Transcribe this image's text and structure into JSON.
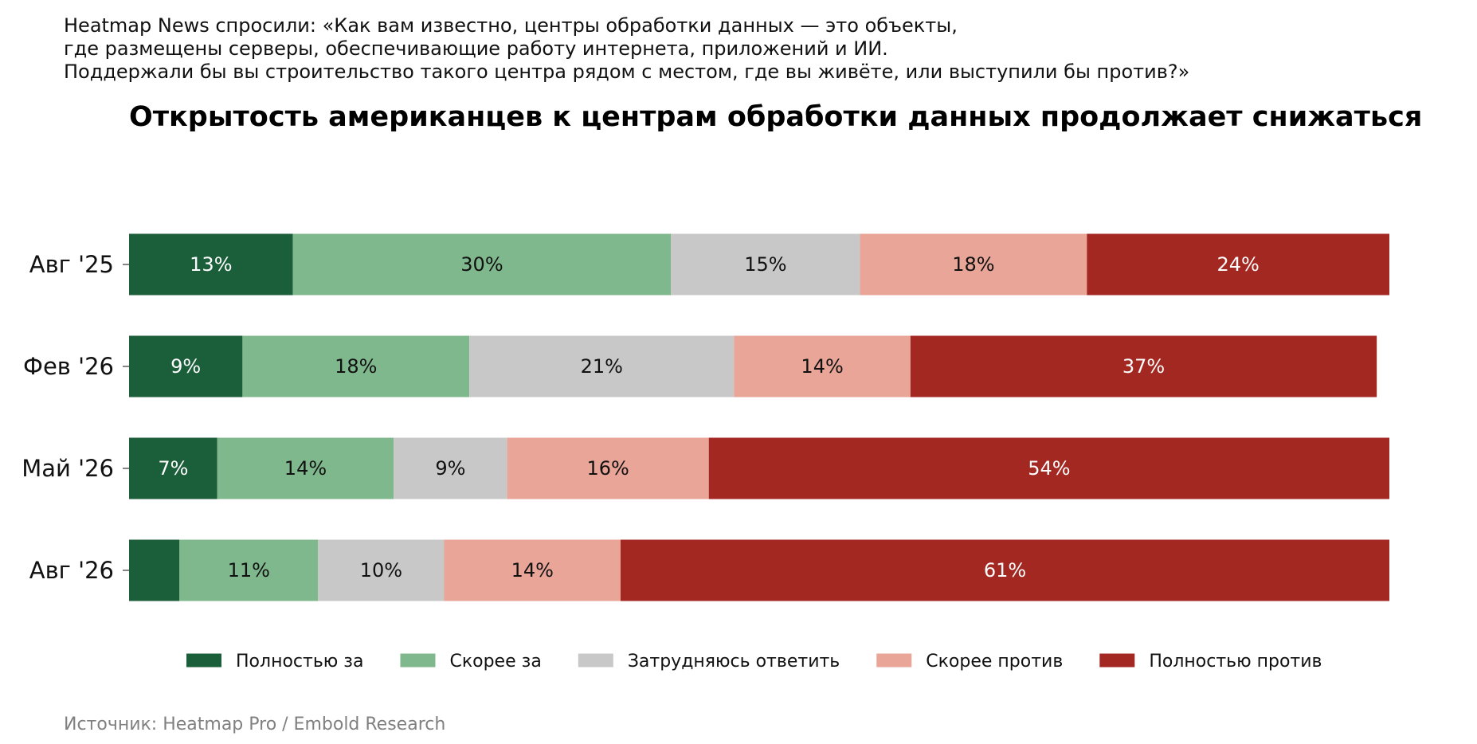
{
  "question": {
    "lines": [
      "Heatmap News спросили: «Как вам известно, центры обработки данных — это объекты,",
      "где размещены серверы, обеспечивающие работу интернета, приложений и ИИ.",
      "Поддержали бы вы строительство такого центра рядом с местом, где вы живёте, или выступили бы против?»"
    ]
  },
  "source": "Источник: Heatmap Pro / Embold Research",
  "chart_data": {
    "type": "bar",
    "orientation": "horizontal",
    "stacked": true,
    "title": "Открытость американцев к центрам обработки данных продолжает снижаться",
    "xlabel": "",
    "ylabel": "",
    "xlim": [
      0,
      100
    ],
    "grid": false,
    "legend_position": "bottom",
    "categories": [
      "Авг '25",
      "Фев '26",
      "Май '26",
      "Авг '26"
    ],
    "series": [
      {
        "name": "Полностью за",
        "color": "#1b5e3a",
        "values": [
          13,
          9,
          7,
          4
        ],
        "labels": [
          "13%",
          "9%",
          "7%",
          ""
        ],
        "label_color": "#ffffff"
      },
      {
        "name": "Скорее за",
        "color": "#80b88e",
        "values": [
          30,
          18,
          14,
          11
        ],
        "labels": [
          "30%",
          "18%",
          "14%",
          "11%"
        ],
        "label_color": "#111111"
      },
      {
        "name": "Затрудняюсь ответить",
        "color": "#c8c8c8",
        "values": [
          15,
          21,
          9,
          10
        ],
        "labels": [
          "15%",
          "21%",
          "9%",
          "10%"
        ],
        "label_color": "#111111"
      },
      {
        "name": "Скорее против",
        "color": "#e8a598",
        "values": [
          18,
          14,
          16,
          14
        ],
        "labels": [
          "18%",
          "14%",
          "16%",
          "14%"
        ],
        "label_color": "#111111"
      },
      {
        "name": "Полностью против",
        "color": "#a22821",
        "values": [
          24,
          37,
          54,
          61
        ],
        "labels": [
          "24%",
          "37%",
          "54%",
          "61%"
        ],
        "label_color": "#ffffff"
      }
    ]
  }
}
